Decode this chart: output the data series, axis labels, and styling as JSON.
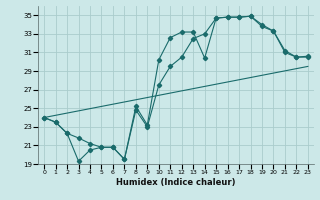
{
  "xlabel": "Humidex (Indice chaleur)",
  "xlim": [
    -0.5,
    23.5
  ],
  "ylim": [
    19,
    36
  ],
  "yticks": [
    19,
    21,
    23,
    25,
    27,
    29,
    31,
    33,
    35
  ],
  "xticks": [
    0,
    1,
    2,
    3,
    4,
    5,
    6,
    7,
    8,
    9,
    10,
    11,
    12,
    13,
    14,
    15,
    16,
    17,
    18,
    19,
    20,
    21,
    22,
    23
  ],
  "bg_color": "#cce8e8",
  "grid_color": "#aacccc",
  "line_color": "#1a6b6b",
  "line1_x": [
    0,
    1,
    2,
    3,
    4,
    5,
    6,
    7,
    8,
    9,
    10,
    11,
    12,
    13,
    14,
    15,
    16,
    17,
    18,
    19,
    20,
    21,
    22,
    23
  ],
  "line1_y": [
    24.0,
    23.5,
    22.3,
    19.3,
    20.5,
    20.8,
    20.8,
    19.5,
    25.2,
    23.2,
    30.2,
    32.6,
    33.2,
    33.2,
    30.4,
    34.7,
    34.8,
    34.8,
    34.9,
    33.8,
    33.3,
    31.2,
    30.5,
    30.6
  ],
  "line2_x": [
    0,
    1,
    2,
    3,
    4,
    5,
    6,
    7,
    8,
    9,
    10,
    11,
    12,
    13,
    14,
    15,
    16,
    17,
    18,
    19,
    20,
    21,
    22,
    23
  ],
  "line2_y": [
    24.0,
    23.5,
    22.3,
    21.8,
    21.2,
    20.8,
    20.8,
    19.5,
    24.8,
    23.0,
    27.5,
    29.5,
    30.5,
    32.5,
    33.0,
    34.7,
    34.8,
    34.8,
    34.9,
    34.0,
    33.3,
    31.0,
    30.5,
    30.5
  ],
  "line3_x": [
    0,
    23
  ],
  "line3_y": [
    24.0,
    29.5
  ]
}
